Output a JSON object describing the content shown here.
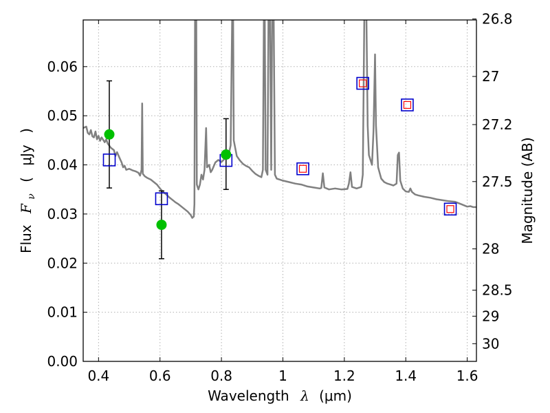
{
  "chart_data": {
    "type": "scatter",
    "xlabel": {
      "text": "Wavelength",
      "symbol": "λ",
      "unit": "(μm)"
    },
    "ylabel": {
      "prefix": "Flux",
      "symbol": "F",
      "subscript": "ν",
      "open_paren": "(",
      "unit": "μJy",
      "close_paren": ")"
    },
    "y2label": "Magnitude (AB)",
    "xlim": [
      0.35,
      1.63
    ],
    "ylim": [
      0.0,
      0.0695
    ],
    "grid": true,
    "x_ticks": [
      {
        "value": 0.4,
        "label": "0.4"
      },
      {
        "value": 0.6,
        "label": "0.6"
      },
      {
        "value": 0.8,
        "label": "0.8"
      },
      {
        "value": 1.0,
        "label": "1"
      },
      {
        "value": 1.2,
        "label": "1.2"
      },
      {
        "value": 1.4,
        "label": "1.4"
      },
      {
        "value": 1.6,
        "label": "1.6"
      }
    ],
    "y_ticks": [
      {
        "value": 0.0,
        "label": "0.00"
      },
      {
        "value": 0.01,
        "label": "0.01"
      },
      {
        "value": 0.02,
        "label": "0.02"
      },
      {
        "value": 0.03,
        "label": "0.03"
      },
      {
        "value": 0.04,
        "label": "0.04"
      },
      {
        "value": 0.05,
        "label": "0.05"
      },
      {
        "value": 0.06,
        "label": "0.06"
      }
    ],
    "y2_ticks": [
      {
        "label": "26.8",
        "flux": 0.0697
      },
      {
        "label": "27",
        "flux": 0.058
      },
      {
        "label": "27.2",
        "flux": 0.0482
      },
      {
        "label": "27.5",
        "flux": 0.0366
      },
      {
        "label": "28",
        "flux": 0.0229
      },
      {
        "label": "28.5",
        "flux": 0.0145
      },
      {
        "label": "29",
        "flux": 0.0092
      },
      {
        "label": "30",
        "flux": 0.0036
      }
    ],
    "colors": {
      "spectrum": "#808080",
      "observed": "#00c000",
      "model_box": "#0000cc",
      "model_inner": "#ff0000",
      "errorbar": "#000000",
      "grid": "#b0b0b0"
    },
    "series": [
      {
        "kind": "spectrum",
        "points": [
          [
            0.35,
            0.0475
          ],
          [
            0.36,
            0.0478
          ],
          [
            0.365,
            0.0465
          ],
          [
            0.37,
            0.0462
          ],
          [
            0.375,
            0.0471
          ],
          [
            0.38,
            0.0458
          ],
          [
            0.385,
            0.0456
          ],
          [
            0.39,
            0.0468
          ],
          [
            0.395,
            0.0452
          ],
          [
            0.4,
            0.0459
          ],
          [
            0.405,
            0.0449
          ],
          [
            0.41,
            0.0456
          ],
          [
            0.42,
            0.0446
          ],
          [
            0.425,
            0.0452
          ],
          [
            0.43,
            0.0443
          ],
          [
            0.44,
            0.0435
          ],
          [
            0.45,
            0.043
          ],
          [
            0.455,
            0.0418
          ],
          [
            0.46,
            0.0426
          ],
          [
            0.47,
            0.0412
          ],
          [
            0.475,
            0.0405
          ],
          [
            0.48,
            0.0395
          ],
          [
            0.485,
            0.0398
          ],
          [
            0.49,
            0.039
          ],
          [
            0.5,
            0.0392
          ],
          [
            0.51,
            0.0389
          ],
          [
            0.52,
            0.0387
          ],
          [
            0.53,
            0.0384
          ],
          [
            0.535,
            0.0378
          ],
          [
            0.54,
            0.039
          ],
          [
            0.542,
            0.0525
          ],
          [
            0.544,
            0.0382
          ],
          [
            0.55,
            0.0377
          ],
          [
            0.56,
            0.0373
          ],
          [
            0.57,
            0.037
          ],
          [
            0.58,
            0.0365
          ],
          [
            0.59,
            0.036
          ],
          [
            0.6,
            0.0352
          ],
          [
            0.61,
            0.0345
          ],
          [
            0.62,
            0.034
          ],
          [
            0.63,
            0.0334
          ],
          [
            0.64,
            0.0329
          ],
          [
            0.65,
            0.0324
          ],
          [
            0.66,
            0.032
          ],
          [
            0.67,
            0.0315
          ],
          [
            0.68,
            0.031
          ],
          [
            0.69,
            0.0305
          ],
          [
            0.7,
            0.0298
          ],
          [
            0.705,
            0.0292
          ],
          [
            0.71,
            0.0295
          ],
          [
            0.712,
            0.032
          ],
          [
            0.714,
            0.07
          ],
          [
            0.718,
            0.07
          ],
          [
            0.72,
            0.036
          ],
          [
            0.725,
            0.035
          ],
          [
            0.73,
            0.036
          ],
          [
            0.735,
            0.038
          ],
          [
            0.74,
            0.037
          ],
          [
            0.745,
            0.039
          ],
          [
            0.75,
            0.0475
          ],
          [
            0.753,
            0.0395
          ],
          [
            0.76,
            0.04
          ],
          [
            0.765,
            0.0385
          ],
          [
            0.77,
            0.039
          ],
          [
            0.78,
            0.0405
          ],
          [
            0.79,
            0.041
          ],
          [
            0.8,
            0.0406
          ],
          [
            0.81,
            0.0412
          ],
          [
            0.82,
            0.042
          ],
          [
            0.825,
            0.0425
          ],
          [
            0.83,
            0.044
          ],
          [
            0.835,
            0.07
          ],
          [
            0.838,
            0.07
          ],
          [
            0.84,
            0.045
          ],
          [
            0.85,
            0.0418
          ],
          [
            0.86,
            0.0409
          ],
          [
            0.87,
            0.0402
          ],
          [
            0.88,
            0.0398
          ],
          [
            0.89,
            0.0395
          ],
          [
            0.9,
            0.0388
          ],
          [
            0.91,
            0.0382
          ],
          [
            0.92,
            0.0378
          ],
          [
            0.93,
            0.0375
          ],
          [
            0.935,
            0.039
          ],
          [
            0.938,
            0.07
          ],
          [
            0.941,
            0.07
          ],
          [
            0.944,
            0.039
          ],
          [
            0.95,
            0.038
          ],
          [
            0.953,
            0.07
          ],
          [
            0.958,
            0.07
          ],
          [
            0.962,
            0.039
          ],
          [
            0.965,
            0.07
          ],
          [
            0.97,
            0.07
          ],
          [
            0.974,
            0.038
          ],
          [
            0.98,
            0.0372
          ],
          [
            0.99,
            0.037
          ],
          [
            1.0,
            0.0368
          ],
          [
            1.02,
            0.0365
          ],
          [
            1.04,
            0.0362
          ],
          [
            1.06,
            0.036
          ],
          [
            1.08,
            0.0356
          ],
          [
            1.1,
            0.0354
          ],
          [
            1.12,
            0.0352
          ],
          [
            1.125,
            0.0353
          ],
          [
            1.13,
            0.0383
          ],
          [
            1.135,
            0.0354
          ],
          [
            1.15,
            0.035
          ],
          [
            1.17,
            0.0352
          ],
          [
            1.19,
            0.035
          ],
          [
            1.21,
            0.0351
          ],
          [
            1.215,
            0.0362
          ],
          [
            1.22,
            0.0385
          ],
          [
            1.225,
            0.0355
          ],
          [
            1.24,
            0.0352
          ],
          [
            1.255,
            0.0355
          ],
          [
            1.26,
            0.038
          ],
          [
            1.265,
            0.07
          ],
          [
            1.272,
            0.07
          ],
          [
            1.276,
            0.048
          ],
          [
            1.28,
            0.042
          ],
          [
            1.29,
            0.04
          ],
          [
            1.295,
            0.047
          ],
          [
            1.3,
            0.0625
          ],
          [
            1.303,
            0.048
          ],
          [
            1.31,
            0.0395
          ],
          [
            1.32,
            0.0372
          ],
          [
            1.33,
            0.0365
          ],
          [
            1.34,
            0.0362
          ],
          [
            1.35,
            0.036
          ],
          [
            1.36,
            0.0358
          ],
          [
            1.37,
            0.0362
          ],
          [
            1.374,
            0.042
          ],
          [
            1.378,
            0.0425
          ],
          [
            1.382,
            0.0368
          ],
          [
            1.39,
            0.0352
          ],
          [
            1.4,
            0.0346
          ],
          [
            1.41,
            0.0345
          ],
          [
            1.415,
            0.0352
          ],
          [
            1.42,
            0.0345
          ],
          [
            1.43,
            0.034
          ],
          [
            1.44,
            0.0338
          ],
          [
            1.46,
            0.0335
          ],
          [
            1.48,
            0.0333
          ],
          [
            1.5,
            0.033
          ],
          [
            1.52,
            0.0328
          ],
          [
            1.54,
            0.0326
          ],
          [
            1.56,
            0.0325
          ],
          [
            1.58,
            0.032
          ],
          [
            1.6,
            0.0315
          ],
          [
            1.61,
            0.0316
          ],
          [
            1.62,
            0.0314
          ],
          [
            1.63,
            0.0314
          ]
        ]
      },
      {
        "kind": "observed",
        "points": [
          {
            "x": 0.435,
            "y": 0.0462,
            "err_low": 0.0353,
            "err_high": 0.0571
          },
          {
            "x": 0.605,
            "y": 0.0278,
            "err_low": 0.0209,
            "err_high": 0.0347
          },
          {
            "x": 0.815,
            "y": 0.0421,
            "err_low": 0.035,
            "err_high": 0.0494
          }
        ]
      },
      {
        "kind": "model",
        "points": [
          {
            "x": 0.435,
            "y": 0.041,
            "inner": false
          },
          {
            "x": 0.605,
            "y": 0.0331,
            "inner": false
          },
          {
            "x": 0.815,
            "y": 0.0409,
            "inner": false
          },
          {
            "x": 1.065,
            "y": 0.0392,
            "inner": true
          },
          {
            "x": 1.26,
            "y": 0.0566,
            "inner": true
          },
          {
            "x": 1.405,
            "y": 0.0522,
            "inner": true
          },
          {
            "x": 1.545,
            "y": 0.031,
            "inner": true
          }
        ]
      }
    ]
  }
}
